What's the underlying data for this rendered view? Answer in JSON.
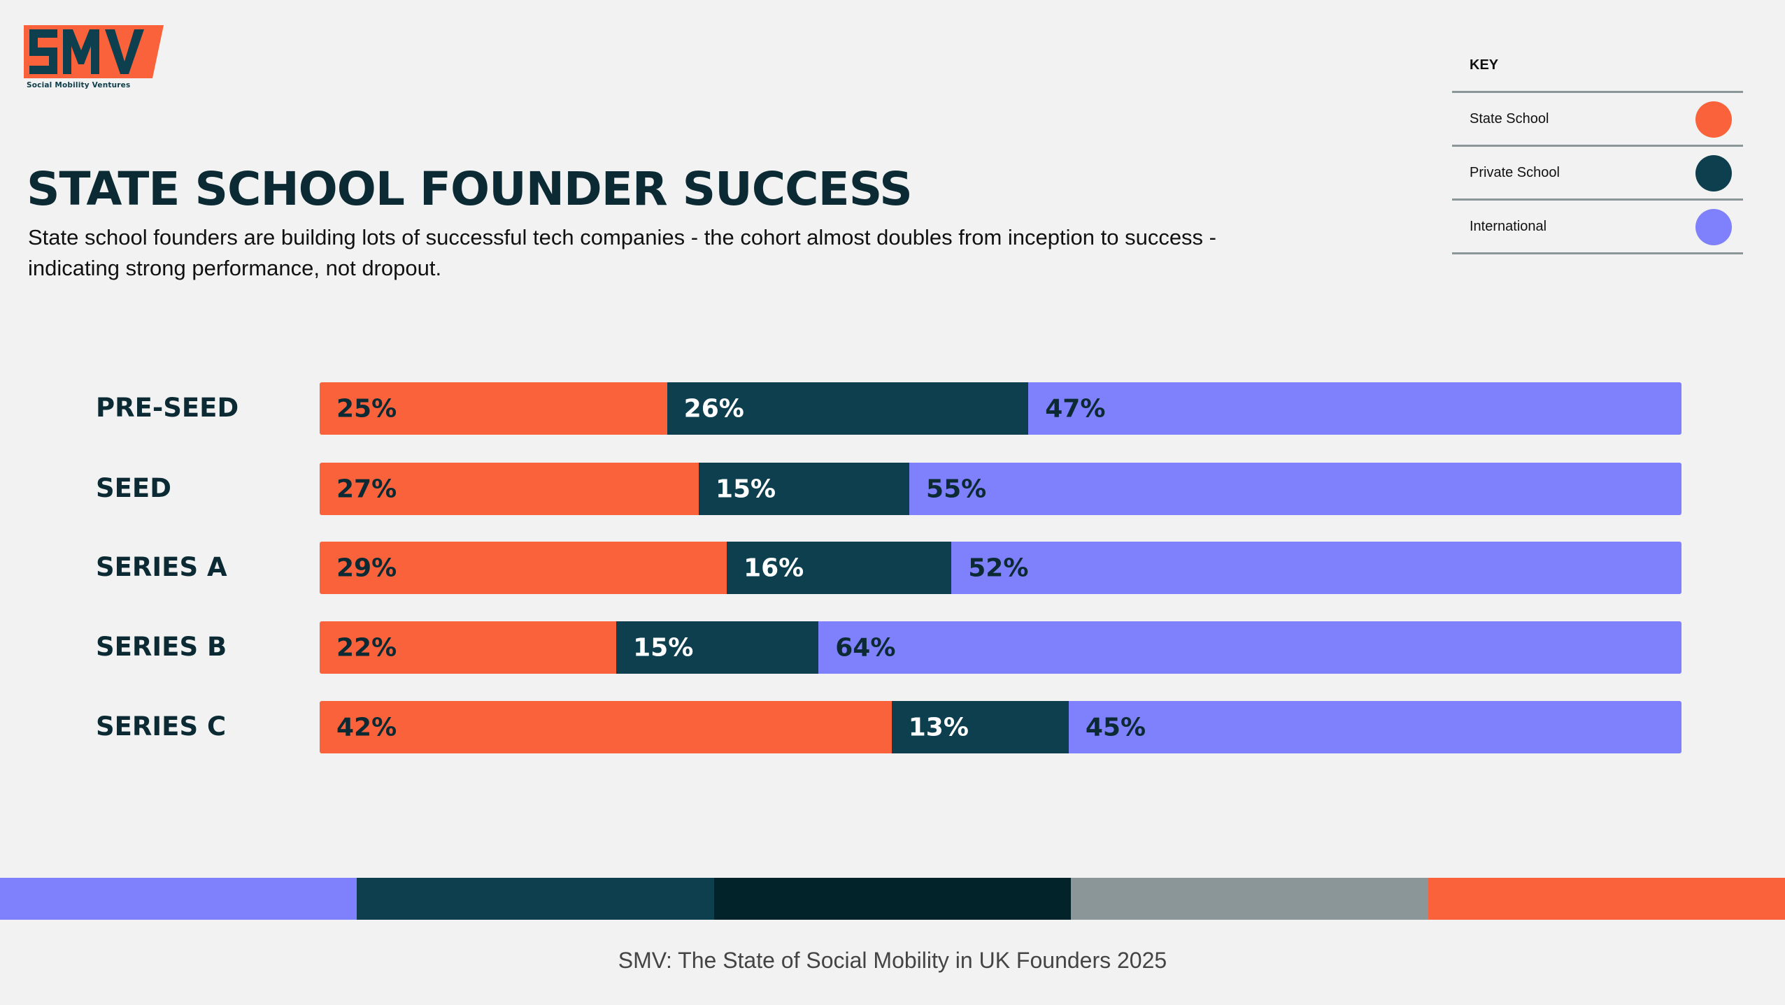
{
  "brand": {
    "logo_text": "SMV",
    "logo_caption": "Social Mobility Ventures"
  },
  "header": {
    "title": "STATE SCHOOL FOUNDER SUCCESS",
    "subtitle": "State school founders are building lots of successful tech companies - the cohort almost doubles from inception to success - indicating strong performance, not dropout."
  },
  "key": {
    "title": "KEY",
    "items": [
      {
        "label": "State School",
        "color": "#f9623a"
      },
      {
        "label": "Private School",
        "color": "#0e3f4e"
      },
      {
        "label": "International",
        "color": "#7f80fb"
      }
    ]
  },
  "chart_data": {
    "type": "bar",
    "orientation": "horizontal",
    "stacked": true,
    "categories": [
      "PRE-SEED",
      "SEED",
      "SERIES A",
      "SERIES B",
      "SERIES C"
    ],
    "series": [
      {
        "name": "State School",
        "color": "#f9623a",
        "values": [
          25,
          27,
          29,
          22,
          42
        ],
        "labels": [
          "25%",
          "27%",
          "29%",
          "22%",
          "42%"
        ]
      },
      {
        "name": "Private School",
        "color": "#0e3f4e",
        "values": [
          26,
          15,
          16,
          15,
          13
        ],
        "labels": [
          "26%",
          "15%",
          "16%",
          "15%",
          "13%"
        ]
      },
      {
        "name": "International",
        "color": "#7f80fb",
        "values": [
          47,
          55,
          52,
          64,
          45
        ],
        "labels": [
          "47%",
          "55%",
          "52%",
          "64%",
          "45%"
        ]
      }
    ],
    "legend": "top-right",
    "grid": false
  },
  "footer": {
    "stripe_colors": [
      "#7f80fb",
      "#0e3f4e",
      "#02232a",
      "#8a9698",
      "#f9623a"
    ],
    "text": "SMV: The State of Social Mobility in UK Founders 2025"
  }
}
